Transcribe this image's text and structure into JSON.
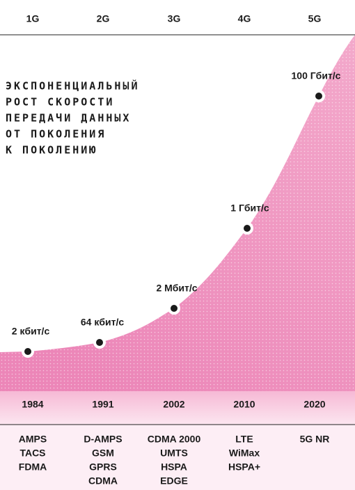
{
  "generations": [
    "1G",
    "2G",
    "3G",
    "4G",
    "5G"
  ],
  "title": [
    "ЭКСПОНЕНЦИАЛЬНЫЙ",
    "РОСТ СКОРОСТИ",
    "ПЕРЕДАЧИ ДАННЫХ",
    "ОТ ПОКОЛЕНИЯ",
    "К ПОКОЛЕНИЮ"
  ],
  "milestones": [
    {
      "speed": "2 кбит/с",
      "year": "1984",
      "technologies": [
        "AMPS",
        "TACS",
        "FDMA"
      ]
    },
    {
      "speed": "64 кбит/с",
      "year": "1991",
      "technologies": [
        "D-AMPS",
        "GSM",
        "GPRS",
        "CDMA"
      ]
    },
    {
      "speed": "2 Мбит/с",
      "year": "2002",
      "technologies": [
        "CDMA 2000",
        "UMTS",
        "HSPA",
        "EDGE"
      ]
    },
    {
      "speed": "1 Гбит/с",
      "year": "2010",
      "technologies": [
        "LTE",
        "WiMax",
        "HSPA+"
      ]
    },
    {
      "speed": "100 Гбит/с",
      "year": "2020",
      "technologies": [
        "5G NR"
      ]
    }
  ]
}
